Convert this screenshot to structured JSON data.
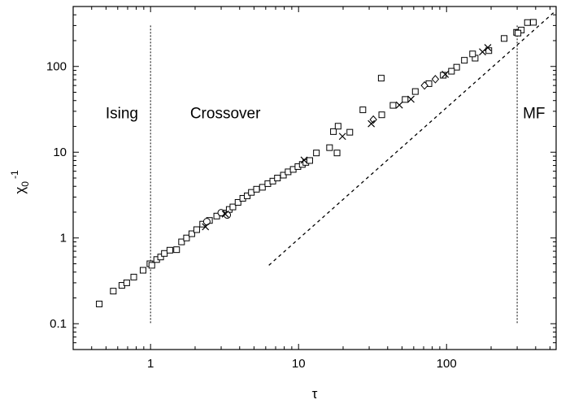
{
  "chart_data": {
    "type": "scatter",
    "title": "",
    "xlabel": "τ",
    "ylabel": "χ0⁻¹",
    "ylabel_parts": {
      "base": "χ",
      "sub": "0",
      "sup": "-1"
    },
    "x_scale": "log",
    "y_scale": "log",
    "xlim": [
      0.3,
      550
    ],
    "ylim": [
      0.05,
      500
    ],
    "grid": false,
    "x_ticks": [
      {
        "value": 1,
        "label": "1"
      },
      {
        "value": 10,
        "label": "10"
      },
      {
        "value": 100,
        "label": "100"
      }
    ],
    "y_ticks": [
      {
        "value": 0.1,
        "label": "0.1"
      },
      {
        "value": 1,
        "label": "1"
      },
      {
        "value": 10,
        "label": "10"
      },
      {
        "value": 100,
        "label": "100"
      }
    ],
    "region_labels": [
      {
        "text": "Ising",
        "x": 0.64,
        "y": 29
      },
      {
        "text": "Crossover",
        "x": 3.2,
        "y": 29
      },
      {
        "text": "MF",
        "x": 390,
        "y": 29
      }
    ],
    "vertical_lines": [
      {
        "x": 1,
        "y_range": [
          0.1,
          300
        ]
      },
      {
        "x": 300,
        "y_range": [
          0.1,
          300
        ]
      }
    ],
    "fit_line": {
      "style": "dashed",
      "points": [
        [
          6.3,
          0.48
        ],
        [
          550,
          450
        ]
      ]
    },
    "series": [
      {
        "marker": "square",
        "values": [
          [
            0.45,
            0.17
          ],
          [
            0.56,
            0.24
          ],
          [
            0.64,
            0.28
          ],
          [
            0.69,
            0.3
          ],
          [
            0.77,
            0.35
          ],
          [
            0.89,
            0.42
          ],
          [
            0.99,
            0.5
          ],
          [
            1.02,
            0.48
          ],
          [
            1.1,
            0.56
          ],
          [
            1.17,
            0.6
          ],
          [
            1.24,
            0.66
          ],
          [
            1.35,
            0.72
          ],
          [
            1.5,
            0.73
          ],
          [
            1.62,
            0.9
          ],
          [
            1.75,
            1.0
          ],
          [
            1.9,
            1.12
          ],
          [
            2.05,
            1.25
          ],
          [
            2.25,
            1.45
          ],
          [
            2.5,
            1.6
          ],
          [
            2.8,
            1.8
          ],
          [
            3.1,
            1.95
          ],
          [
            3.4,
            2.15
          ],
          [
            3.6,
            2.3
          ],
          [
            3.9,
            2.6
          ],
          [
            4.2,
            2.9
          ],
          [
            4.5,
            3.1
          ],
          [
            4.8,
            3.4
          ],
          [
            5.2,
            3.7
          ],
          [
            5.7,
            3.9
          ],
          [
            6.2,
            4.3
          ],
          [
            6.7,
            4.6
          ],
          [
            7.2,
            5.0
          ],
          [
            7.9,
            5.4
          ],
          [
            8.5,
            5.9
          ],
          [
            9.2,
            6.3
          ],
          [
            9.9,
            6.8
          ],
          [
            10.6,
            7.2
          ],
          [
            11.2,
            7.6
          ],
          [
            11.9,
            8.0
          ],
          [
            13.2,
            9.8
          ],
          [
            16.2,
            11.3
          ],
          [
            17.2,
            17.4
          ],
          [
            18.5,
            20.1
          ],
          [
            18.2,
            9.8
          ],
          [
            22.2,
            17.1
          ],
          [
            27.2,
            31.2
          ],
          [
            36.2,
            73.0
          ],
          [
            36.5,
            27.3
          ],
          [
            43.5,
            35.2
          ],
          [
            52.5,
            41.2
          ],
          [
            61.5,
            51.0
          ],
          [
            76.0,
            63.0
          ],
          [
            95.0,
            79.0
          ],
          [
            117.0,
            98.0
          ],
          [
            132.0,
            118.0
          ],
          [
            156.0,
            125.0
          ],
          [
            193.0,
            153.0
          ],
          [
            245.0,
            212.0
          ],
          [
            297.0,
            250.0
          ],
          [
            320.0,
            266.0
          ],
          [
            352.0,
            325.0
          ],
          [
            386.0,
            327.0
          ],
          [
            304.0,
            245.0
          ],
          [
            150.0,
            140.0
          ],
          [
            108.0,
            88.0
          ]
        ]
      },
      {
        "marker": "circle",
        "values": [
          [
            2.4,
            1.55
          ],
          [
            3.0,
            1.97
          ],
          [
            3.3,
            1.85
          ]
        ]
      },
      {
        "marker": "diamond",
        "values": [
          [
            84.0,
            71.0
          ],
          [
            71.0,
            60.0
          ],
          [
            32.0,
            24.0
          ]
        ]
      },
      {
        "marker": "x",
        "values": [
          [
            2.35,
            1.35
          ],
          [
            3.2,
            1.9
          ],
          [
            10.9,
            8.1
          ],
          [
            19.8,
            15.3
          ],
          [
            31.0,
            21.5
          ],
          [
            48.0,
            35.5
          ],
          [
            57.5,
            41.5
          ],
          [
            98.0,
            81.0
          ],
          [
            175.0,
            148.0
          ],
          [
            190.0,
            166.0
          ]
        ]
      }
    ]
  }
}
